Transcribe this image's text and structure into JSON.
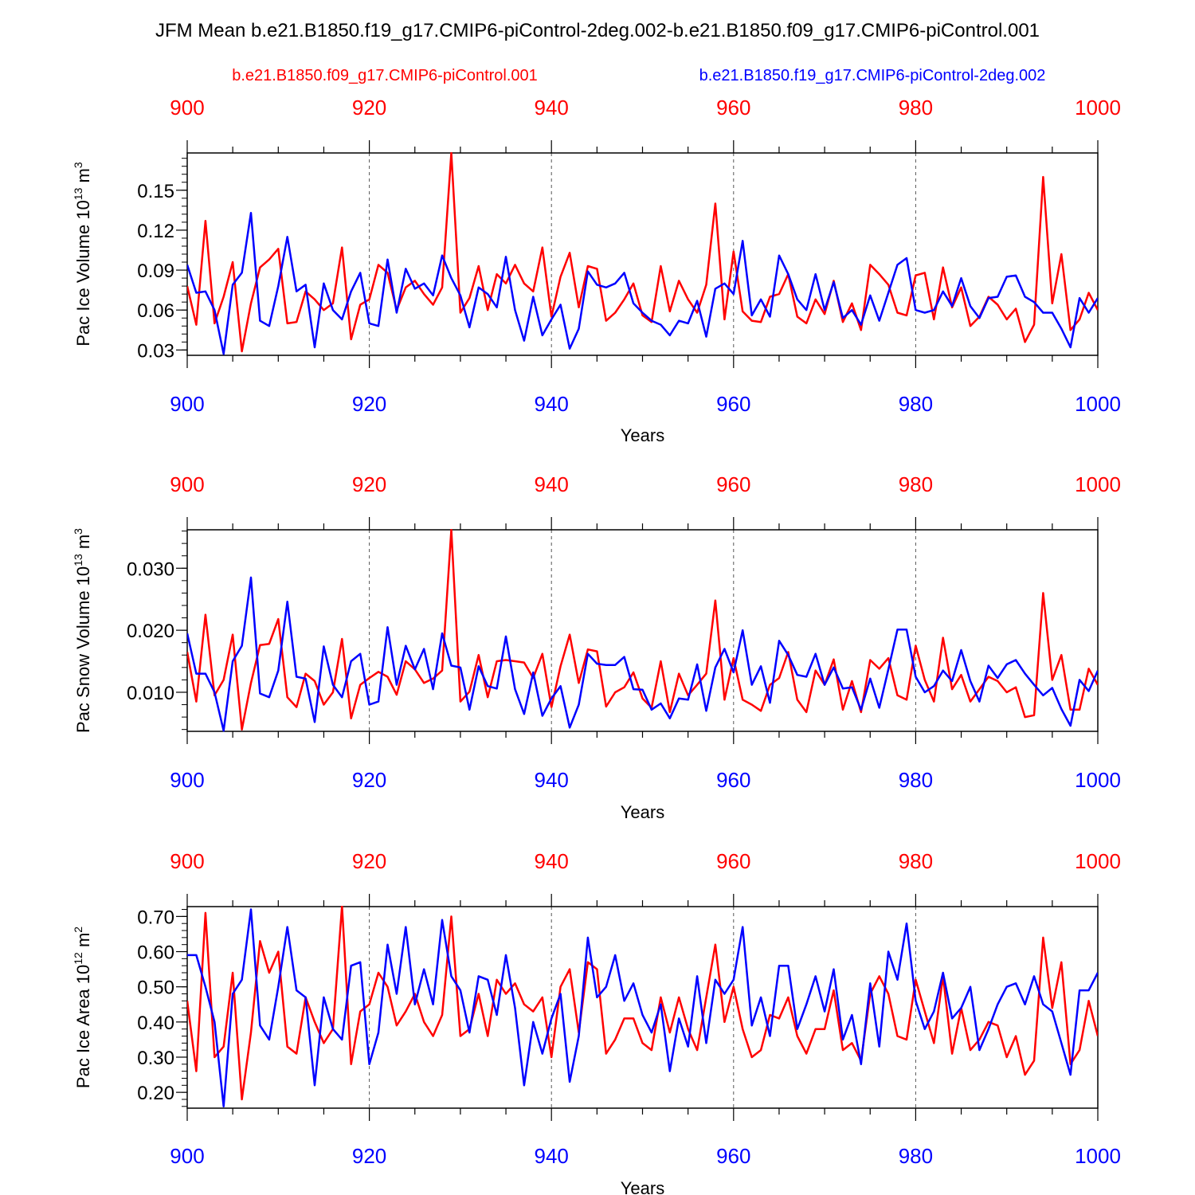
{
  "title": "JFM Mean b.e21.B1850.f19_g17.CMIP6-piControl-2deg.002-b.e21.B1850.f09_g17.CMIP6-piControl.001",
  "legend": {
    "red_label": "b.e21.B1850.f09_g17.CMIP6-piControl.001",
    "blue_label": "b.e21.B1850.f19_g17.CMIP6-piControl-2deg.002"
  },
  "colors": {
    "red": "#ff0000",
    "blue": "#0000ff",
    "axis": "#000000",
    "grid": "#555555"
  },
  "chart_data": [
    {
      "type": "line",
      "ylabel": "Pac Ice Volume 10",
      "ylabel_exp": "13",
      "ylabel_unit": " m",
      "ylabel_unit_exp": "3",
      "xlabel": "Years",
      "xlim": [
        900,
        1000
      ],
      "ylim": [
        0.026,
        0.178
      ],
      "xticks": [
        "900",
        "920",
        "940",
        "960",
        "980",
        "1000"
      ],
      "yticks": [
        "0.03",
        "0.06",
        "0.09",
        "0.12",
        "0.15"
      ],
      "ytick_values": [
        0.03,
        0.06,
        0.09,
        0.12,
        0.15
      ],
      "x_start": 900,
      "series": [
        {
          "name": "b.e21.B1850.f09_g17.CMIP6-piControl.001",
          "color": "red",
          "values": [
            0.078,
            0.049,
            0.127,
            0.05,
            0.07,
            0.096,
            0.029,
            0.065,
            0.092,
            0.098,
            0.106,
            0.05,
            0.051,
            0.074,
            0.068,
            0.06,
            0.065,
            0.107,
            0.038,
            0.064,
            0.068,
            0.094,
            0.088,
            0.06,
            0.077,
            0.082,
            0.072,
            0.064,
            0.077,
            0.178,
            0.058,
            0.069,
            0.093,
            0.06,
            0.087,
            0.08,
            0.094,
            0.08,
            0.074,
            0.107,
            0.055,
            0.085,
            0.103,
            0.062,
            0.093,
            0.091,
            0.052,
            0.058,
            0.068,
            0.08,
            0.056,
            0.051,
            0.093,
            0.059,
            0.082,
            0.068,
            0.058,
            0.079,
            0.14,
            0.053,
            0.104,
            0.059,
            0.052,
            0.051,
            0.07,
            0.072,
            0.087,
            0.055,
            0.05,
            0.068,
            0.057,
            0.082,
            0.051,
            0.065,
            0.045,
            0.094,
            0.087,
            0.079,
            0.058,
            0.056,
            0.086,
            0.088,
            0.053,
            0.092,
            0.062,
            0.077,
            0.048,
            0.055,
            0.07,
            0.064,
            0.053,
            0.061,
            0.036,
            0.049,
            0.16,
            0.065,
            0.102,
            0.045,
            0.053,
            0.073,
            0.06
          ]
        },
        {
          "name": "b.e21.B1850.f19_g17.CMIP6-piControl-2deg.002",
          "color": "blue",
          "values": [
            0.094,
            0.073,
            0.074,
            0.06,
            0.027,
            0.079,
            0.088,
            0.133,
            0.052,
            0.048,
            0.078,
            0.115,
            0.074,
            0.079,
            0.032,
            0.08,
            0.06,
            0.053,
            0.074,
            0.088,
            0.05,
            0.048,
            0.098,
            0.058,
            0.091,
            0.076,
            0.08,
            0.071,
            0.101,
            0.084,
            0.071,
            0.047,
            0.077,
            0.072,
            0.062,
            0.1,
            0.06,
            0.037,
            0.07,
            0.041,
            0.053,
            0.064,
            0.031,
            0.046,
            0.089,
            0.079,
            0.077,
            0.08,
            0.088,
            0.065,
            0.058,
            0.052,
            0.049,
            0.041,
            0.052,
            0.05,
            0.067,
            0.04,
            0.076,
            0.08,
            0.072,
            0.112,
            0.056,
            0.068,
            0.055,
            0.101,
            0.087,
            0.068,
            0.06,
            0.087,
            0.06,
            0.081,
            0.054,
            0.06,
            0.049,
            0.071,
            0.052,
            0.073,
            0.094,
            0.099,
            0.06,
            0.058,
            0.06,
            0.074,
            0.063,
            0.084,
            0.063,
            0.054,
            0.069,
            0.07,
            0.085,
            0.086,
            0.07,
            0.066,
            0.058,
            0.058,
            0.046,
            0.032,
            0.069,
            0.058,
            0.069
          ]
        }
      ]
    },
    {
      "type": "line",
      "ylabel": "Pac Snow Volume 10",
      "ylabel_exp": "13",
      "ylabel_unit": " m",
      "ylabel_unit_exp": "3",
      "xlabel": "Years",
      "xlim": [
        900,
        1000
      ],
      "ylim": [
        0.0037,
        0.0362
      ],
      "xticks": [
        "900",
        "920",
        "940",
        "960",
        "980",
        "1000"
      ],
      "yticks": [
        "0.010",
        "0.020",
        "0.030"
      ],
      "ytick_values": [
        0.01,
        0.02,
        0.03
      ],
      "x_start": 900,
      "series": [
        {
          "name": "b.e21.B1850.f09_g17.CMIP6-piControl.001",
          "color": "red",
          "values": [
            0.0165,
            0.0085,
            0.0225,
            0.0095,
            0.012,
            0.0193,
            0.004,
            0.0115,
            0.0176,
            0.0178,
            0.0218,
            0.0092,
            0.0076,
            0.013,
            0.0118,
            0.008,
            0.01,
            0.0186,
            0.0058,
            0.0112,
            0.0123,
            0.0133,
            0.0125,
            0.0096,
            0.015,
            0.0137,
            0.0115,
            0.0122,
            0.0135,
            0.0362,
            0.0085,
            0.0101,
            0.016,
            0.0092,
            0.015,
            0.0152,
            0.015,
            0.0148,
            0.0123,
            0.0162,
            0.0076,
            0.0142,
            0.0193,
            0.0115,
            0.0169,
            0.0166,
            0.0077,
            0.01,
            0.0108,
            0.0132,
            0.009,
            0.0075,
            0.015,
            0.0068,
            0.013,
            0.0095,
            0.0112,
            0.013,
            0.0248,
            0.0088,
            0.0155,
            0.0088,
            0.008,
            0.007,
            0.0112,
            0.0123,
            0.0165,
            0.0088,
            0.0068,
            0.0135,
            0.0112,
            0.0153,
            0.0072,
            0.0118,
            0.0068,
            0.0152,
            0.0138,
            0.0155,
            0.0095,
            0.0088,
            0.0175,
            0.012,
            0.0085,
            0.0188,
            0.0105,
            0.0128,
            0.0085,
            0.0105,
            0.0125,
            0.0118,
            0.01,
            0.0108,
            0.006,
            0.0063,
            0.026,
            0.012,
            0.016,
            0.0072,
            0.0072,
            0.0138,
            0.0112
          ]
        },
        {
          "name": "b.e21.B1850.f19_g17.CMIP6-piControl-2deg.002",
          "color": "blue",
          "values": [
            0.0195,
            0.013,
            0.013,
            0.01,
            0.0038,
            0.015,
            0.0175,
            0.0285,
            0.0098,
            0.0092,
            0.0135,
            0.0246,
            0.0125,
            0.0122,
            0.0052,
            0.0174,
            0.0112,
            0.0092,
            0.015,
            0.0162,
            0.008,
            0.0085,
            0.0205,
            0.0112,
            0.0175,
            0.0137,
            0.017,
            0.0105,
            0.0195,
            0.0143,
            0.014,
            0.0072,
            0.0142,
            0.011,
            0.0106,
            0.019,
            0.0105,
            0.0065,
            0.0132,
            0.0062,
            0.009,
            0.011,
            0.0043,
            0.008,
            0.0162,
            0.0146,
            0.0144,
            0.0144,
            0.0157,
            0.0105,
            0.0104,
            0.0072,
            0.0082,
            0.0058,
            0.009,
            0.0088,
            0.0145,
            0.007,
            0.014,
            0.017,
            0.0132,
            0.02,
            0.0112,
            0.0142,
            0.0083,
            0.0183,
            0.016,
            0.0128,
            0.0125,
            0.0162,
            0.0112,
            0.014,
            0.0106,
            0.0108,
            0.0072,
            0.0122,
            0.0075,
            0.0137,
            0.0201,
            0.0201,
            0.0125,
            0.01,
            0.011,
            0.0135,
            0.0118,
            0.0168,
            0.0118,
            0.0085,
            0.0143,
            0.0123,
            0.0145,
            0.0152,
            0.013,
            0.0112,
            0.0095,
            0.0107,
            0.0073,
            0.0046,
            0.012,
            0.0102,
            0.0135
          ]
        }
      ]
    },
    {
      "type": "line",
      "ylabel": "Pac Ice Area 10",
      "ylabel_exp": "12",
      "ylabel_unit": " m",
      "ylabel_unit_exp": "2",
      "xlabel": "Years",
      "xlim": [
        900,
        1000
      ],
      "ylim": [
        0.155,
        0.728
      ],
      "xticks": [
        "900",
        "920",
        "940",
        "960",
        "980",
        "1000"
      ],
      "yticks": [
        "0.20",
        "0.30",
        "0.40",
        "0.50",
        "0.60",
        "0.70"
      ],
      "ytick_values": [
        0.2,
        0.3,
        0.4,
        0.5,
        0.6,
        0.7
      ],
      "x_start": 900,
      "series": [
        {
          "name": "b.e21.B1850.f09_g17.CMIP6-piControl.001",
          "color": "red",
          "values": [
            0.46,
            0.26,
            0.71,
            0.3,
            0.33,
            0.54,
            0.18,
            0.37,
            0.63,
            0.54,
            0.6,
            0.33,
            0.31,
            0.47,
            0.4,
            0.34,
            0.38,
            0.73,
            0.28,
            0.43,
            0.45,
            0.54,
            0.5,
            0.39,
            0.43,
            0.48,
            0.4,
            0.36,
            0.42,
            0.7,
            0.36,
            0.38,
            0.48,
            0.36,
            0.52,
            0.48,
            0.51,
            0.45,
            0.43,
            0.47,
            0.3,
            0.5,
            0.55,
            0.37,
            0.57,
            0.55,
            0.31,
            0.35,
            0.41,
            0.41,
            0.34,
            0.32,
            0.47,
            0.37,
            0.47,
            0.38,
            0.32,
            0.47,
            0.62,
            0.4,
            0.5,
            0.38,
            0.3,
            0.32,
            0.42,
            0.41,
            0.47,
            0.36,
            0.31,
            0.38,
            0.38,
            0.49,
            0.32,
            0.34,
            0.29,
            0.48,
            0.53,
            0.48,
            0.36,
            0.35,
            0.52,
            0.43,
            0.34,
            0.53,
            0.31,
            0.44,
            0.32,
            0.35,
            0.4,
            0.39,
            0.3,
            0.36,
            0.25,
            0.29,
            0.64,
            0.44,
            0.57,
            0.28,
            0.32,
            0.46,
            0.36
          ]
        },
        {
          "name": "b.e21.B1850.f19_g17.CMIP6-piControl-2deg.002",
          "color": "blue",
          "values": [
            0.59,
            0.59,
            0.5,
            0.4,
            0.16,
            0.48,
            0.52,
            0.72,
            0.39,
            0.35,
            0.5,
            0.67,
            0.49,
            0.47,
            0.22,
            0.47,
            0.38,
            0.35,
            0.56,
            0.57,
            0.28,
            0.37,
            0.62,
            0.48,
            0.67,
            0.45,
            0.55,
            0.45,
            0.69,
            0.53,
            0.49,
            0.37,
            0.53,
            0.52,
            0.42,
            0.59,
            0.44,
            0.22,
            0.4,
            0.31,
            0.41,
            0.48,
            0.23,
            0.36,
            0.64,
            0.47,
            0.5,
            0.59,
            0.46,
            0.51,
            0.42,
            0.37,
            0.45,
            0.26,
            0.41,
            0.33,
            0.53,
            0.34,
            0.52,
            0.48,
            0.52,
            0.67,
            0.39,
            0.47,
            0.36,
            0.56,
            0.56,
            0.38,
            0.45,
            0.53,
            0.43,
            0.55,
            0.35,
            0.42,
            0.28,
            0.51,
            0.33,
            0.6,
            0.52,
            0.68,
            0.46,
            0.38,
            0.43,
            0.54,
            0.41,
            0.44,
            0.5,
            0.32,
            0.38,
            0.45,
            0.5,
            0.51,
            0.45,
            0.53,
            0.45,
            0.43,
            0.34,
            0.25,
            0.49,
            0.49,
            0.54
          ]
        }
      ]
    }
  ]
}
